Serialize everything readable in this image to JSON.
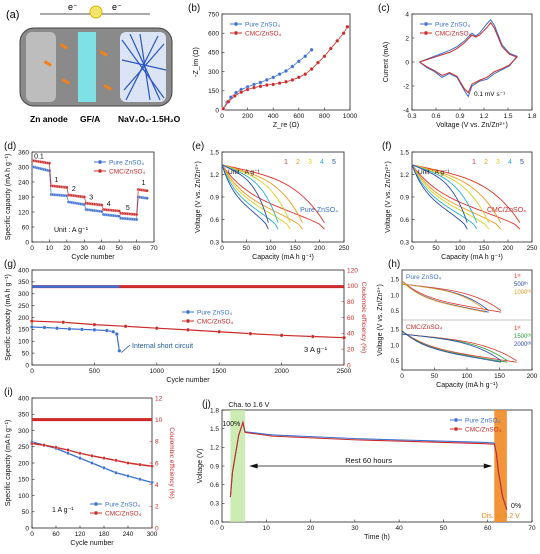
{
  "colors": {
    "pure": "#3b6fd0",
    "cmc": "#cc2a2a",
    "cmc_dark": "#b01d1d",
    "rate_colors": [
      "#e0352b",
      "#f39a1e",
      "#d6d21e",
      "#2bb0c8",
      "#2a4bb5"
    ],
    "green_band": "#bfe7a0",
    "orange_band": "#ef8a22",
    "gray_text": "#333333"
  },
  "panels": {
    "a": {
      "label": "(a)",
      "electron_left": "e⁻",
      "electron_right": "e⁻",
      "anode": "Zn anode",
      "separator": "GF/A",
      "cathode": "NaV₃O₈·1.5H₂O"
    },
    "b": {
      "label": "(b)",
      "xlabel": "Z_re (Ω)",
      "ylabel": "-Z_im (Ω)",
      "xticks": [
        "0",
        "200",
        "400",
        "600",
        "800",
        "1000"
      ],
      "yticks": [
        "0",
        "150",
        "300",
        "450",
        "600",
        "750"
      ],
      "legend": [
        "Pure ZnSO₄",
        "CMC/ZnSO₄"
      ]
    },
    "c": {
      "label": "(c)",
      "xlabel": "Voltage (V vs. Zn/Zn²⁺)",
      "ylabel": "Current (mA)",
      "xticks": [
        "0.3",
        "0.6",
        "0.9",
        "1.2",
        "1.5",
        "1.8"
      ],
      "yticks": [
        "-4",
        "-2",
        "0",
        "2",
        "4"
      ],
      "legend": [
        "Pure ZnSO₄",
        "CMC/ZnSO₄"
      ],
      "annotation": "0.1 mV s⁻¹"
    },
    "d": {
      "label": "(d)",
      "xlabel": "Cycle number",
      "ylabel": "Specific capacity (mA h g⁻¹)",
      "xticks": [
        "0",
        "10",
        "20",
        "30",
        "40",
        "50",
        "60",
        "70"
      ],
      "yticks": [
        "0",
        "60",
        "120",
        "180",
        "240",
        "300",
        "360"
      ],
      "legend": [
        "Pure ZnSO₄",
        "CMC/ZnSO₄"
      ],
      "unit_text": "Unit : A g⁻¹",
      "rate_labels": [
        "0.1",
        "1",
        "2",
        "3",
        "4",
        "5",
        "1"
      ]
    },
    "e": {
      "label": "(e)",
      "xlabel": "Capacity (mA h g⁻¹)",
      "ylabel": "Voltage (V vs. Zn/Zn²⁺)",
      "xticks": [
        "0",
        "50",
        "100",
        "150",
        "200",
        "250"
      ],
      "yticks": [
        "0.3",
        "0.6",
        "0.9",
        "1.2",
        "1.5"
      ],
      "unit_text": "Unit : A g⁻¹",
      "curve_labels": [
        "5",
        "4",
        "3",
        "2",
        "1"
      ],
      "name": "Pure ZnSO₄"
    },
    "f": {
      "label": "(f)",
      "xlabel": "Capacity (mA h g⁻¹)",
      "ylabel": "Voltage (V vs. Zn/Zn²⁺)",
      "xticks": [
        "0",
        "50",
        "100",
        "150",
        "200",
        "250"
      ],
      "yticks": [
        "0.3",
        "0.6",
        "0.9",
        "1.2",
        "1.5"
      ],
      "unit_text": "Unit : A g⁻¹",
      "curve_labels": [
        "5",
        "4",
        "3",
        "2",
        "1"
      ],
      "name": "CMC/ZnSO₄"
    },
    "g": {
      "label": "(g)",
      "xlabel": "Cycle number",
      "ylabel": "Specific capacity (mA h g⁻¹)",
      "y2label": "Coulombic efficiency (%)",
      "xticks": [
        "0",
        "500",
        "1000",
        "1500",
        "2000",
        "2500"
      ],
      "yticks": [
        "0",
        "50",
        "100",
        "150",
        "200",
        "250",
        "300",
        "350",
        "400"
      ],
      "y2ticks": [
        "0",
        "20",
        "40",
        "60",
        "80",
        "100",
        "120"
      ],
      "legend": [
        "Pure ZnSO₄",
        "CMC/ZnSO₄"
      ],
      "annotation": "Internal short circuit",
      "rate_text": "3 A g⁻¹"
    },
    "h": {
      "label": "(h)",
      "xlabel": "Capacity (mA h g⁻¹)",
      "ylabel": "Voltage (V vs. Zn/Zn²⁺)",
      "xticks": [
        "0",
        "50",
        "100",
        "150",
        "200"
      ],
      "yticks": [
        "0.5",
        "1.0",
        "1.5"
      ],
      "top_name": "Pure ZnSO₄",
      "bottom_name": "CMC/ZnSO₄",
      "top_labels": [
        "1ˢᵗ",
        "500ᵗʰ",
        "1000ᵗʰ"
      ],
      "bottom_labels": [
        "1ˢᵗ",
        "1500ᵗʰ",
        "2000ᵗʰ"
      ]
    },
    "i": {
      "label": "(i)",
      "xlabel": "Cycle number",
      "ylabel": "Specific capacity (mA h g⁻¹)",
      "y2label": "Coulombic efficiency (%)",
      "xticks": [
        "0",
        "60",
        "120",
        "180",
        "240",
        "300"
      ],
      "yticks": [
        "0",
        "50",
        "100",
        "150",
        "200",
        "250",
        "300",
        "350",
        "400"
      ],
      "y2ticks": [
        "0",
        "2",
        "4",
        "6",
        "8",
        "10",
        "12"
      ],
      "legend": [
        "Pure ZnSO₄",
        "CMC/ZnSO₄"
      ],
      "rate_text": "1 A g⁻¹"
    },
    "j": {
      "label": "(j)",
      "xlabel": "Time (h)",
      "ylabel": "Voltage (V)",
      "xticks": [
        "0",
        "10",
        "20",
        "30",
        "40",
        "50",
        "60",
        "70"
      ],
      "yticks": [
        "0.0",
        "0.3",
        "0.6",
        "0.9",
        "1.2",
        "1.5",
        "1.8"
      ],
      "legend": [
        "Pure ZnSO₄",
        "CMC/ZnSO₄"
      ],
      "charge_text": "Cha. to 1.6 V",
      "full_text": "100%",
      "rest_text": "Rest 60 hours",
      "empty_text": "0%",
      "dis_text": "Dis. to 0.2 V"
    }
  },
  "chart_data": [
    {
      "panel": "b",
      "type": "scatter",
      "xlabel": "Z_re (Ω)",
      "ylabel": "-Z_im (Ω)",
      "xlim": [
        0,
        1050
      ],
      "ylim": [
        0,
        750
      ],
      "series": [
        {
          "name": "Pure ZnSO₄",
          "x": [
            10,
            40,
            70,
            110,
            150,
            200,
            250,
            300,
            350,
            400,
            450,
            500,
            550,
            600,
            650,
            700
          ],
          "y": [
            10,
            60,
            100,
            135,
            160,
            180,
            200,
            215,
            235,
            255,
            280,
            305,
            340,
            380,
            420,
            470
          ]
        },
        {
          "name": "CMC/ZnSO₄",
          "x": [
            10,
            50,
            100,
            150,
            200,
            250,
            300,
            350,
            400,
            450,
            500,
            550,
            600,
            650,
            700,
            750,
            800,
            850,
            900,
            950,
            980
          ],
          "y": [
            10,
            65,
            110,
            140,
            160,
            175,
            185,
            195,
            200,
            210,
            220,
            235,
            255,
            280,
            320,
            370,
            420,
            480,
            540,
            600,
            650
          ]
        }
      ]
    },
    {
      "panel": "c",
      "type": "line",
      "xlabel": "Voltage (V vs. Zn/Zn²⁺)",
      "ylabel": "Current (mA)",
      "xlim": [
        0.2,
        1.8
      ],
      "ylim": [
        -5,
        5
      ],
      "series": [
        {
          "name": "Pure ZnSO₄",
          "x": [
            0.3,
            0.5,
            0.7,
            0.8,
            0.9,
            1.0,
            1.05,
            1.1,
            1.2,
            1.25,
            1.3,
            1.4,
            1.5,
            1.6,
            1.5,
            1.4,
            1.3,
            1.2,
            1.1,
            1.0,
            0.95,
            0.9,
            0.8,
            0.7,
            0.6,
            0.5,
            0.4,
            0.3
          ],
          "y": [
            0.0,
            0.6,
            1.2,
            1.6,
            2.2,
            3.0,
            2.7,
            3.0,
            4.0,
            4.4,
            3.8,
            1.8,
            0.9,
            0.6,
            -0.4,
            -0.8,
            -1.2,
            -1.8,
            -2.0,
            -2.5,
            -3.6,
            -3.0,
            -1.6,
            -1.2,
            -1.6,
            -1.0,
            -0.6,
            0.0
          ]
        },
        {
          "name": "CMC/ZnSO₄",
          "x": [
            0.3,
            0.5,
            0.7,
            0.8,
            0.9,
            1.0,
            1.05,
            1.1,
            1.2,
            1.25,
            1.3,
            1.4,
            1.5,
            1.6,
            1.5,
            1.4,
            1.3,
            1.2,
            1.1,
            1.0,
            0.95,
            0.9,
            0.8,
            0.7,
            0.6,
            0.5,
            0.4,
            0.3
          ],
          "y": [
            0.0,
            0.5,
            1.0,
            1.4,
            2.0,
            2.8,
            2.6,
            2.8,
            3.6,
            4.1,
            3.5,
            1.6,
            0.8,
            0.5,
            -0.3,
            -0.7,
            -1.0,
            -1.6,
            -1.9,
            -2.3,
            -3.2,
            -2.8,
            -1.5,
            -1.1,
            -1.4,
            -0.9,
            -0.5,
            0.0
          ]
        }
      ]
    },
    {
      "panel": "d",
      "type": "scatter",
      "xlabel": "Cycle number",
      "ylabel": "Specific capacity (mA h g⁻¹)",
      "xlim": [
        0,
        70
      ],
      "ylim": [
        0,
        360
      ],
      "series": [
        {
          "name": "Pure ZnSO₄",
          "segments": [
            [
              1,
              10,
              300,
              285
            ],
            [
              11,
              20,
              190,
              185
            ],
            [
              21,
              30,
              160,
              150
            ],
            [
              31,
              40,
              130,
              122
            ],
            [
              41,
              50,
              110,
              103
            ],
            [
              51,
              60,
              95,
              90
            ],
            [
              61,
              66,
              180,
              175
            ]
          ]
        },
        {
          "name": "CMC/ZnSO₄",
          "segments": [
            [
              1,
              10,
              325,
              315
            ],
            [
              11,
              20,
              225,
              218
            ],
            [
              21,
              30,
              188,
              180
            ],
            [
              31,
              40,
              155,
              148
            ],
            [
              41,
              50,
              130,
              124
            ],
            [
              51,
              60,
              115,
              110
            ],
            [
              61,
              66,
              210,
              205
            ]
          ]
        }
      ]
    },
    {
      "panel": "e",
      "type": "line",
      "xlabel": "Capacity (mA h g⁻¹)",
      "ylabel": "Voltage (V vs. Zn/Zn²⁺)",
      "xlim": [
        0,
        250
      ],
      "ylim": [
        0.2,
        1.6
      ],
      "series": [
        {
          "name": "1",
          "x_max": 210
        },
        {
          "name": "2",
          "x_max": 165
        },
        {
          "name": "3",
          "x_max": 140
        },
        {
          "name": "4",
          "x_max": 115
        },
        {
          "name": "5",
          "x_max": 95
        }
      ]
    },
    {
      "panel": "f",
      "type": "line",
      "xlabel": "Capacity (mA h g⁻¹)",
      "ylabel": "Voltage (V vs. Zn/Zn²⁺)",
      "xlim": [
        0,
        250
      ],
      "ylim": [
        0.2,
        1.6
      ],
      "series": [
        {
          "name": "1",
          "x_max": 225
        },
        {
          "name": "2",
          "x_max": 185
        },
        {
          "name": "3",
          "x_max": 160
        },
        {
          "name": "4",
          "x_max": 135
        },
        {
          "name": "5",
          "x_max": 115
        }
      ]
    },
    {
      "panel": "g",
      "type": "scatter",
      "xlabel": "Cycle number",
      "ylabel": "Specific capacity (mA h g⁻¹)",
      "xlim": [
        0,
        2500
      ],
      "ylim": [
        0,
        400
      ],
      "y2lim": [
        0,
        120
      ],
      "series": [
        {
          "name": "Pure ZnSO₄ capacity",
          "x": [
            0,
            100,
            200,
            300,
            400,
            500,
            600,
            650,
            680,
            700
          ],
          "y": [
            160,
            158,
            155,
            152,
            150,
            148,
            145,
            140,
            130,
            60
          ]
        },
        {
          "name": "CMC/ZnSO₄ capacity",
          "x": [
            0,
            250,
            500,
            750,
            1000,
            1250,
            1500,
            1750,
            2000,
            2250,
            2500
          ],
          "y": [
            185,
            180,
            170,
            163,
            155,
            148,
            140,
            132,
            125,
            120,
            115
          ]
        },
        {
          "name": "Pure ZnSO₄ CE",
          "x": [
            0,
            700
          ],
          "y": [
            99,
            99
          ]
        },
        {
          "name": "CMC/ZnSO₄ CE",
          "x": [
            0,
            2500
          ],
          "y": [
            99,
            99
          ]
        }
      ]
    },
    {
      "panel": "h",
      "type": "line",
      "xlabel": "Capacity (mA h g⁻¹)",
      "ylabel": "Voltage (V vs. Zn/Zn²⁺)",
      "xlim": [
        0,
        210
      ],
      "ylim": [
        0.2,
        3.4
      ],
      "series": [
        {
          "name": "Pure 1st",
          "x_max": 160
        },
        {
          "name": "Pure 500th",
          "x_max": 140
        },
        {
          "name": "Pure 1000th",
          "x_max": 135
        },
        {
          "name": "CMC 1st",
          "x_max": 185
        },
        {
          "name": "CMC 1500th",
          "x_max": 170
        },
        {
          "name": "CMC 2000th",
          "x_max": 160
        }
      ]
    },
    {
      "panel": "i",
      "type": "scatter",
      "xlabel": "Cycle number",
      "ylabel": "Specific capacity (mA h g⁻¹)",
      "xlim": [
        0,
        300
      ],
      "ylim": [
        0,
        400
      ],
      "y2lim": [
        0,
        12
      ],
      "series": [
        {
          "name": "Pure ZnSO₄",
          "x": [
            0,
            30,
            60,
            90,
            120,
            150,
            180,
            210,
            240,
            270,
            300
          ],
          "y": [
            265,
            255,
            245,
            230,
            215,
            200,
            185,
            170,
            160,
            150,
            140
          ]
        },
        {
          "name": "CMC/ZnSO₄",
          "x": [
            0,
            30,
            60,
            90,
            120,
            150,
            180,
            210,
            240,
            270,
            300
          ],
          "y": [
            260,
            255,
            248,
            240,
            230,
            222,
            215,
            208,
            200,
            195,
            190
          ]
        },
        {
          "name": "CE",
          "x": [
            0,
            300
          ],
          "y": [
            10,
            10
          ]
        }
      ]
    },
    {
      "panel": "j",
      "type": "line",
      "xlabel": "Time (h)",
      "ylabel": "Voltage (V)",
      "xlim": [
        -2,
        72
      ],
      "ylim": [
        0,
        1.8
      ],
      "series": [
        {
          "name": "Pure ZnSO₄",
          "x": [
            0,
            0.5,
            1,
            1.5,
            2,
            2.5,
            3,
            3.5,
            10,
            20,
            30,
            40,
            50,
            60,
            63,
            63.5,
            64,
            65,
            66
          ],
          "y": [
            0.4,
            0.8,
            1.0,
            1.2,
            1.4,
            1.5,
            1.6,
            1.45,
            1.4,
            1.37,
            1.34,
            1.32,
            1.3,
            1.28,
            1.27,
            1.1,
            0.8,
            0.4,
            0.2
          ]
        },
        {
          "name": "CMC/ZnSO₄",
          "x": [
            0,
            0.5,
            1,
            1.5,
            2,
            2.5,
            3,
            3.5,
            10,
            20,
            30,
            40,
            50,
            60,
            63,
            63.5,
            64,
            65,
            66
          ],
          "y": [
            0.4,
            0.8,
            1.0,
            1.2,
            1.4,
            1.5,
            1.6,
            1.44,
            1.38,
            1.35,
            1.32,
            1.3,
            1.28,
            1.26,
            1.25,
            1.1,
            0.8,
            0.4,
            0.2
          ]
        }
      ]
    }
  ]
}
